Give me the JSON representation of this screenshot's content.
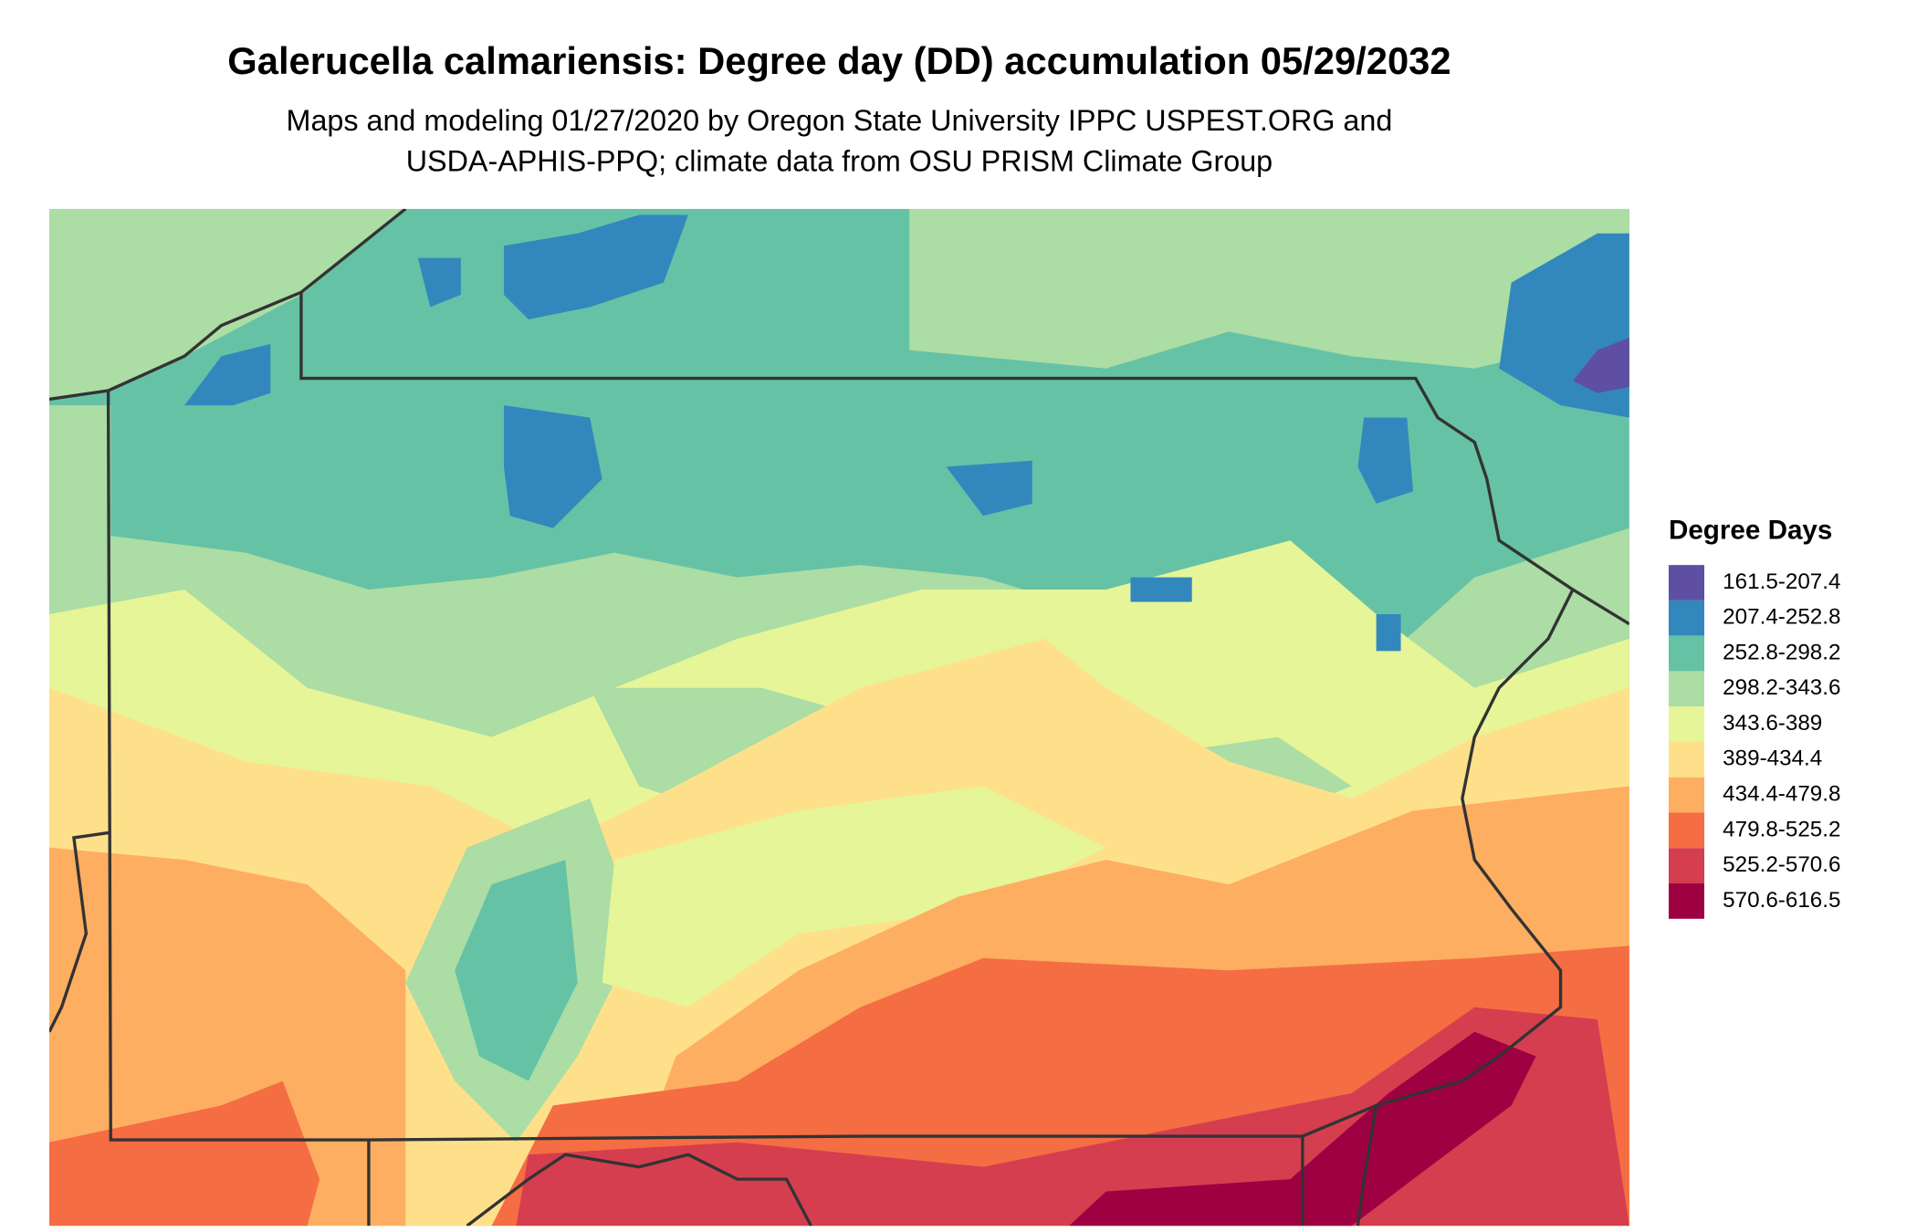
{
  "header": {
    "title": "Galerucella calmariensis: Degree day (DD) accumulation 05/29/2032",
    "subtitle": [
      "Maps and modeling 01/27/2020 by Oregon State University IPPC USPEST.ORG and",
      "USDA-APHIS-PPQ; climate data from OSU PRISM Climate Group"
    ]
  },
  "legend": {
    "title": "Degree Days",
    "items": [
      {
        "label": "161.5-207.4",
        "color": "#5e4fa2"
      },
      {
        "label": "207.4-252.8",
        "color": "#3288bd"
      },
      {
        "label": "252.8-298.2",
        "color": "#66c2a5"
      },
      {
        "label": "298.2-343.6",
        "color": "#abdda4"
      },
      {
        "label": "343.6-389",
        "color": "#e6f598"
      },
      {
        "label": "389-434.4",
        "color": "#fee08b"
      },
      {
        "label": "434.4-479.8",
        "color": "#fdae61"
      },
      {
        "label": "479.8-525.2",
        "color": "#f46d43"
      },
      {
        "label": "525.2-570.6",
        "color": "#d53e4f"
      },
      {
        "label": "570.6-616.5",
        "color": "#9e0142"
      }
    ]
  }
}
